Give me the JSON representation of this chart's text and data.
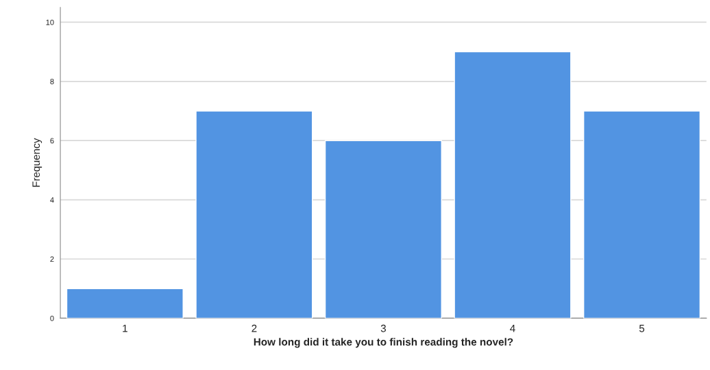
{
  "chart_data": {
    "type": "bar",
    "xlabel": "How long did it take you to finish reading the novel?",
    "ylabel": "Frequency",
    "categories": [
      "1",
      "2",
      "3",
      "4",
      "5"
    ],
    "values": [
      1,
      7,
      6,
      9,
      7
    ],
    "color": "#5294e2",
    "ylim": [
      0,
      10.5
    ],
    "yticks": [
      0,
      2,
      4,
      6,
      8,
      10
    ],
    "grid": "y"
  }
}
